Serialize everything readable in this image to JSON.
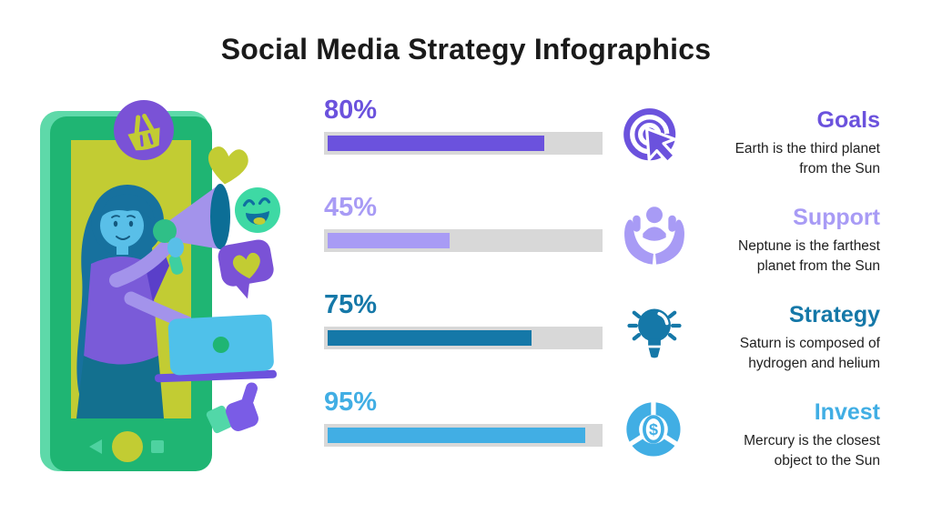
{
  "title": "Social Media Strategy Infographics",
  "colors": {
    "background": "#ffffff",
    "title_text": "#1a1a1a",
    "body_text": "#1f1f1f",
    "bar_track": "#d8d8d8",
    "purple_dark": "#6b52dd",
    "purple_light": "#a89bf5",
    "blue_dark": "#1578a8",
    "blue_light": "#41aee4"
  },
  "chart_data": {
    "type": "bar",
    "orientation": "horizontal",
    "title": "Social Media Strategy Infographics",
    "categories": [
      "Goals",
      "Support",
      "Strategy",
      "Invest"
    ],
    "values": [
      80,
      45,
      75,
      95
    ],
    "value_labels": [
      "80%",
      "45%",
      "75%",
      "95%"
    ],
    "bar_colors": [
      "#6b52dd",
      "#a89bf5",
      "#1578a8",
      "#41aee4"
    ],
    "xlim": [
      0,
      100
    ],
    "grid": false,
    "legend": false
  },
  "rows": [
    {
      "percent_label": "80%",
      "value": 80,
      "color": "#6b52dd",
      "icon": "click-target-icon",
      "heading": "Goals",
      "description": "Earth is the third planet\nfrom the Sun"
    },
    {
      "percent_label": "45%",
      "value": 45,
      "color": "#a89bf5",
      "icon": "supporting-hands-icon",
      "heading": "Support",
      "description": "Neptune is the farthest\nplanet from the Sun"
    },
    {
      "percent_label": "75%",
      "value": 75,
      "color": "#1578a8",
      "icon": "lightbulb-icon",
      "heading": "Strategy",
      "description": "Saturn is composed of\nhydrogen and helium"
    },
    {
      "percent_label": "95%",
      "value": 95,
      "color": "#41aee4",
      "icon": "donut-dollar-icon",
      "heading": "Invest",
      "description": "Mercury is the closest\nobject to the Sun"
    }
  ],
  "illustration": {
    "name": "woman-with-megaphone-in-smartphone",
    "elements": [
      "smartphone",
      "woman",
      "megaphone",
      "laptop",
      "shopping-basket-badge",
      "heart",
      "smiley-emoji",
      "heart-chat-bubble",
      "thumbs-up"
    ],
    "palette": {
      "phone_green": "#1fb573",
      "phone_edge": "#5ed9a9",
      "screen_lime": "#c2cc33",
      "nav_green": "#4ed2a0",
      "hair_teal": "#17719e",
      "skin_blue": "#59bfe8",
      "face_detail": "#14597f",
      "top_purple": "#7a5bd8",
      "top_purple_dark": "#5a3fc9",
      "sleeve_lavender": "#a393eb",
      "skirt_teal": "#13708f",
      "badge_purple": "#7a52d6",
      "lime": "#c2cc33",
      "emoji_green": "#3ed9a4",
      "emoji_detail": "#0f6fa0",
      "laptop_blue": "#4fc1ea",
      "base_purple": "#6c52dd",
      "megaphone_lavender": "#a393eb",
      "megaphone_dark": "#0c6e96",
      "mint": "#3ecfa0",
      "green_accent": "#2fbf87",
      "thumb_purple": "#7a5ce6",
      "cuff_mint": "#52d7a8"
    }
  }
}
